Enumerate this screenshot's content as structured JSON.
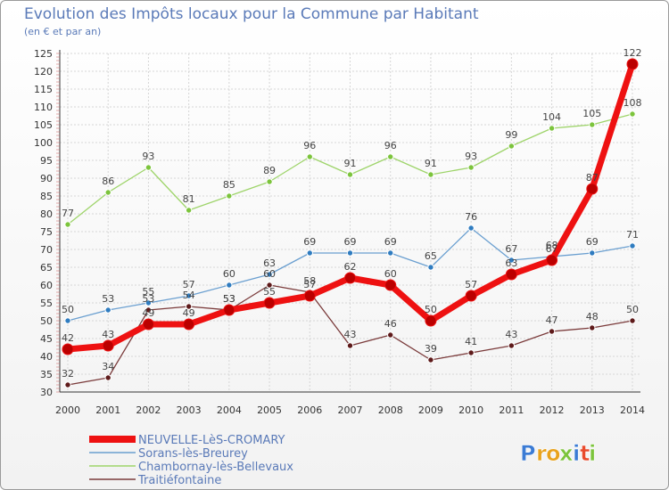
{
  "chart_data": {
    "type": "line",
    "title": "Evolution des Impôts locaux pour la Commune par Habitant",
    "subtitle": "(en € et par an)",
    "x": [
      "2000",
      "2001",
      "2002",
      "2003",
      "2004",
      "2005",
      "2006",
      "2007",
      "2008",
      "2009",
      "2010",
      "2011",
      "2012",
      "2013",
      "2014"
    ],
    "ylim": [
      30,
      125
    ],
    "ystep": 5,
    "grid": true,
    "legend_position": "bottom-left",
    "series": [
      {
        "name": "Sorans-lès-Breurey",
        "color": "#6a9fd0",
        "marker": "#2f7cc0",
        "emphasis": false,
        "values": [
          50,
          53,
          55,
          57,
          60,
          63,
          69,
          69,
          69,
          65,
          76,
          67,
          68,
          69,
          71
        ]
      },
      {
        "name": "Chambornay-lès-Bellevaux",
        "color": "#9ed46a",
        "marker": "#7cc43c",
        "emphasis": false,
        "values": [
          77,
          86,
          93,
          81,
          85,
          89,
          96,
          91,
          96,
          91,
          93,
          99,
          104,
          105,
          108
        ]
      },
      {
        "name": "Traitiéfontaine",
        "color": "#7a3a3a",
        "marker": "#5e1a1a",
        "emphasis": false,
        "values": [
          32,
          34,
          53,
          54,
          53,
          60,
          58,
          43,
          46,
          39,
          41,
          43,
          47,
          48,
          50
        ]
      },
      {
        "name": "NEUVELLE-LèS-CROMARY",
        "color": "#ee1111",
        "marker": "#bb0000",
        "emphasis": true,
        "values": [
          42,
          43,
          49,
          49,
          53,
          55,
          57,
          62,
          60,
          50,
          57,
          63,
          67,
          87,
          122
        ]
      }
    ],
    "legend_order": [
      3,
      0,
      1,
      2
    ]
  },
  "logo": {
    "text": "Proxiti",
    "letters": [
      {
        "ch": "P",
        "color": "#3b7bd4"
      },
      {
        "ch": "r",
        "color": "#e8a21c"
      },
      {
        "ch": "o",
        "color": "#e8a21c"
      },
      {
        "ch": "x",
        "color": "#7cc43c"
      },
      {
        "ch": "i",
        "color": "#3b7bd4"
      },
      {
        "ch": "t",
        "color": "#e84a2c"
      },
      {
        "ch": "i",
        "color": "#7cc43c"
      }
    ]
  }
}
